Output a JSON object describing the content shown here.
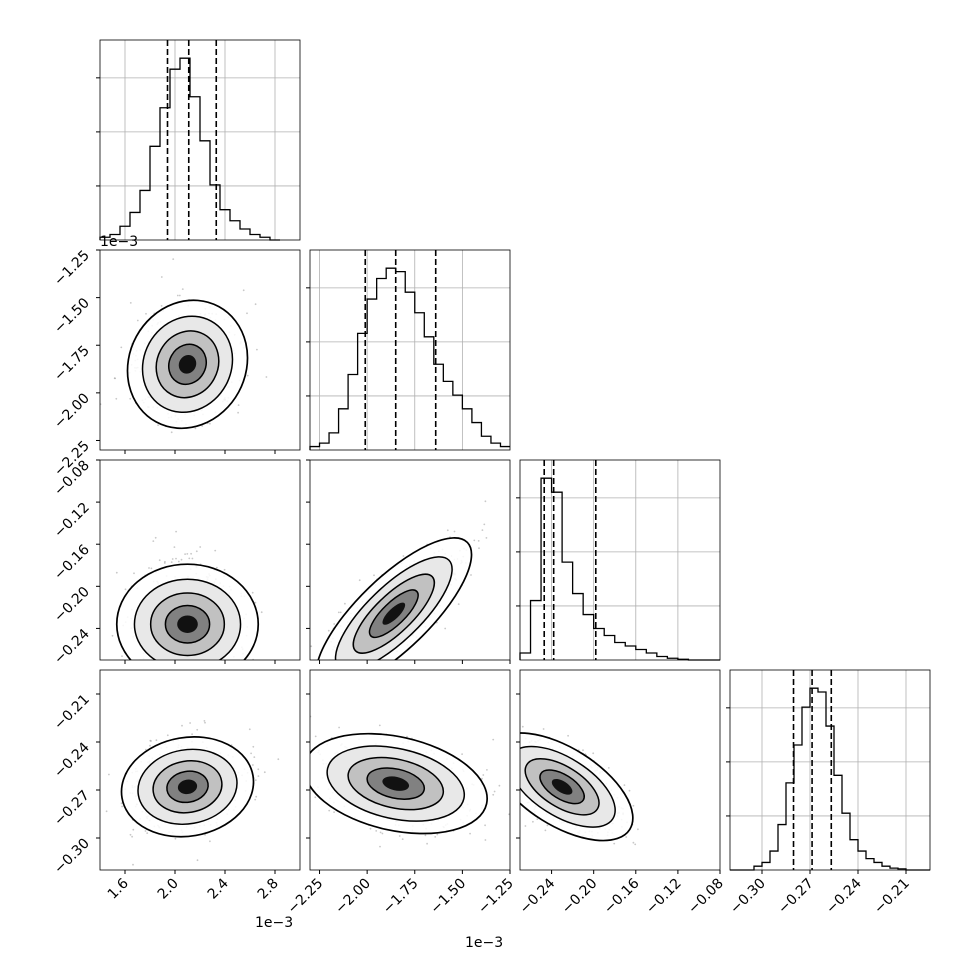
{
  "chart_data": {
    "type": "corner",
    "title": "",
    "grid": true,
    "parameters": [
      {
        "index": 0,
        "range": [
          1.4,
          3.0
        ],
        "ticks": [
          "1.6",
          "2.0",
          "2.4",
          "2.8"
        ],
        "tick_values": [
          1.6,
          2.0,
          2.4,
          2.8
        ],
        "offset_label": "1e−3",
        "quantiles": [
          1.94,
          2.11,
          2.33
        ]
      },
      {
        "index": 1,
        "range": [
          -2.3,
          -1.25
        ],
        "ticks": [
          "−2.25",
          "−2.00",
          "−1.75",
          "−1.50",
          "−1.25"
        ],
        "tick_values": [
          -2.25,
          -2.0,
          -1.75,
          -1.5,
          -1.25
        ],
        "offset_label": "1e−3",
        "quantiles": [
          -2.01,
          -1.85,
          -1.64
        ]
      },
      {
        "index": 2,
        "range": [
          -0.27,
          -0.08
        ],
        "ticks": [
          "−0.24",
          "−0.20",
          "−0.16",
          "−0.12",
          "−0.08"
        ],
        "tick_values": [
          -0.24,
          -0.2,
          -0.16,
          -0.12,
          -0.08
        ],
        "offset_label": "",
        "quantiles": [
          -0.247,
          -0.238,
          -0.198
        ]
      },
      {
        "index": 3,
        "range": [
          -0.32,
          -0.195
        ],
        "ticks": [
          "−0.30",
          "−0.27",
          "−0.24",
          "−0.21"
        ],
        "tick_values": [
          -0.3,
          -0.27,
          -0.24,
          -0.21
        ],
        "offset_label": "",
        "quantiles": [
          -0.2803,
          -0.2687,
          -0.2567
        ]
      }
    ],
    "histograms": [
      {
        "param": 0,
        "bin_edges": [
          1.4,
          1.48,
          1.56,
          1.64,
          1.72,
          1.8,
          1.88,
          1.96,
          2.04,
          2.12,
          2.2,
          2.28,
          2.36,
          2.44,
          2.52,
          2.6,
          2.68,
          2.76,
          2.84
        ],
        "counts": [
          1,
          2,
          5,
          10,
          18,
          34,
          48,
          62,
          66,
          52,
          36,
          20,
          11,
          7,
          4,
          2,
          1,
          0
        ]
      },
      {
        "param": 1,
        "bin_edges": [
          -2.3,
          -2.25,
          -2.2,
          -2.15,
          -2.1,
          -2.05,
          -2.0,
          -1.95,
          -1.9,
          -1.85,
          -1.8,
          -1.75,
          -1.7,
          -1.65,
          -1.6,
          -1.55,
          -1.5,
          -1.45,
          -1.4,
          -1.35,
          -1.3,
          -1.25
        ],
        "counts": [
          1,
          2,
          5,
          12,
          22,
          34,
          44,
          50,
          53,
          52,
          46,
          40,
          33,
          25,
          20,
          16,
          12,
          8,
          4,
          2,
          1
        ]
      },
      {
        "param": 2,
        "bin_edges": [
          -0.27,
          -0.26,
          -0.25,
          -0.24,
          -0.23,
          -0.22,
          -0.21,
          -0.2,
          -0.19,
          -0.18,
          -0.17,
          -0.16,
          -0.15,
          -0.14,
          -0.13,
          -0.12,
          -0.11,
          -0.1,
          -0.09,
          -0.08
        ],
        "counts": [
          2,
          17,
          52,
          48,
          28,
          19,
          13,
          9,
          7,
          5,
          4,
          3,
          2,
          1,
          0.5,
          0.2,
          0,
          0,
          0
        ]
      },
      {
        "param": 3,
        "bin_edges": [
          -0.32,
          -0.315,
          -0.31,
          -0.305,
          -0.3,
          -0.295,
          -0.29,
          -0.285,
          -0.28,
          -0.275,
          -0.27,
          -0.265,
          -0.26,
          -0.255,
          -0.25,
          -0.245,
          -0.24,
          -0.235,
          -0.23,
          -0.225,
          -0.22,
          -0.215,
          -0.21,
          -0.205,
          -0.2,
          -0.195
        ],
        "counts": [
          0,
          0,
          0,
          1,
          2,
          5,
          12,
          23,
          33,
          43,
          48,
          47,
          38,
          25,
          15,
          8,
          5,
          3,
          2,
          1,
          0.5,
          0.3,
          0,
          0,
          0
        ]
      }
    ],
    "pairs": [
      {
        "x": 0,
        "y": 1,
        "mean": [
          2.1,
          -1.85
        ],
        "sd": [
          0.2,
          0.14
        ],
        "corr": 0.1
      },
      {
        "x": 0,
        "y": 2,
        "mean": [
          2.1,
          -0.236
        ],
        "sd": [
          0.2,
          0.028
        ],
        "corr": 0.0
      },
      {
        "x": 1,
        "y": 2,
        "mean": [
          -1.86,
          -0.226
        ],
        "sd": [
          0.17,
          0.03
        ],
        "corr": 0.78
      },
      {
        "x": 0,
        "y": 3,
        "mean": [
          2.1,
          -0.268
        ],
        "sd": [
          0.22,
          0.013
        ],
        "corr": 0.1
      },
      {
        "x": 1,
        "y": 3,
        "mean": [
          -1.85,
          -0.266
        ],
        "sd": [
          0.2,
          0.013
        ],
        "corr": -0.3
      },
      {
        "x": 2,
        "y": 3,
        "mean": [
          -0.23,
          -0.268
        ],
        "sd": [
          0.028,
          0.014
        ],
        "corr": -0.58
      }
    ]
  }
}
